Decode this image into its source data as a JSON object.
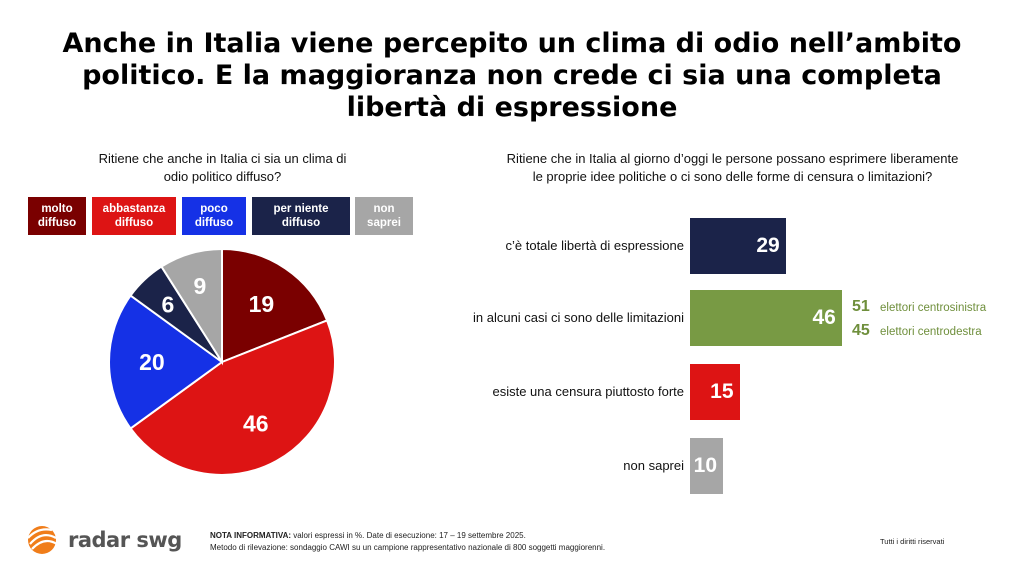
{
  "title": "Anche in Italia viene percepito un clima di odio nell’ambito politico. E la maggioranza non crede ci sia una completa libertà di espressione",
  "left_question": [
    "Ritiene che anche in Italia ci sia un clima di",
    "odio politico diffuso?"
  ],
  "right_question": [
    "Ritiene che in Italia al giorno d’oggi le persone possano esprimere liberamente",
    "le proprie idee politiche o ci sono delle forme di censura o limitazioni?"
  ],
  "chart_data": [
    {
      "type": "pie",
      "categories": [
        "molto diffuso",
        "abbastanza diffuso",
        "poco diffuso",
        "per niente diffuso",
        "non saprei"
      ],
      "values": [
        19,
        46,
        20,
        6,
        9
      ],
      "legend_lines": [
        [
          "molto",
          "diffuso"
        ],
        [
          "abbastanza",
          "diffuso"
        ],
        [
          "poco",
          "diffuso"
        ],
        [
          "per niente",
          "diffuso"
        ],
        [
          "non",
          "saprei"
        ]
      ],
      "colors": [
        "#7a0000",
        "#dd1414",
        "#1531e6",
        "#1b2349",
        "#a6a6a6"
      ],
      "legend_placement": "top"
    },
    {
      "type": "bar",
      "orientation": "horizontal",
      "categories": [
        "c’è totale libertà di espressione",
        "in alcuni casi ci sono delle limitazioni",
        "esiste una censura piuttosto forte",
        "non saprei"
      ],
      "values": [
        29,
        46,
        15,
        10
      ],
      "colors": [
        "#1b2349",
        "#789a44",
        "#dd1414",
        "#a6a6a6"
      ],
      "breakdown": {
        "category": "in alcuni casi ci sono delle limitazioni",
        "items": [
          {
            "value": 51,
            "label": "elettori centrosinistra"
          },
          {
            "value": 45,
            "label": "elettori centrodestra"
          }
        ]
      }
    }
  ],
  "footer": {
    "logo": "radar swg",
    "note_bold": "NOTA INFORMATIVA:",
    "note_line1": " valori espressi in %. Date di esecuzione: 17 – 19 settembre 2025.",
    "note_line2": "Metodo di rilevazione: sondaggio CAWI su un campione rappresentativo nazionale di 800 soggetti maggiorenni.",
    "rights": "Tutti i diritti riservati"
  }
}
